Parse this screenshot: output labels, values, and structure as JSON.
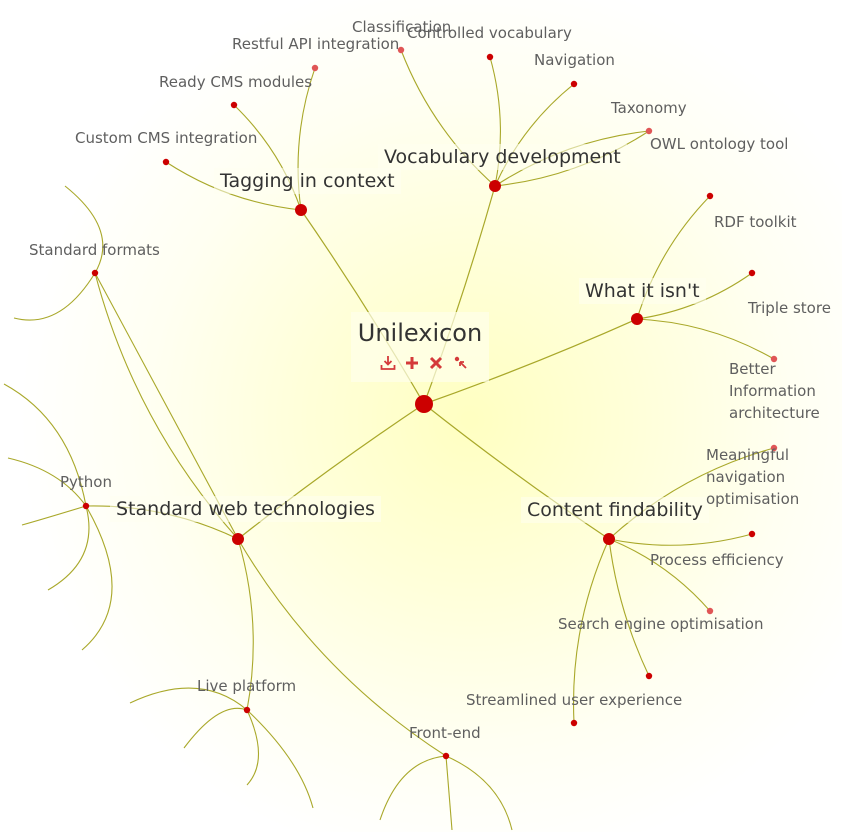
{
  "root": {
    "title": "Unilexicon",
    "tools": [
      {
        "name": "download-icon"
      },
      {
        "name": "add-icon"
      },
      {
        "name": "delete-icon"
      },
      {
        "name": "move-icon"
      }
    ]
  },
  "branches": [
    {
      "id": "tagging",
      "label": "Tagging in context",
      "children": [
        "Restful API integration",
        "Ready CMS modules",
        "Custom CMS integration"
      ]
    },
    {
      "id": "vocab",
      "label": "Vocabulary development",
      "children": [
        "Classification",
        "Controlled vocabulary",
        "Navigation",
        "Taxonomy",
        "OWL ontology tool"
      ]
    },
    {
      "id": "isnt",
      "label": "What it isn't",
      "children": [
        "RDF toolkit",
        "Triple store",
        "Better Information architecture"
      ]
    },
    {
      "id": "findability",
      "label": "Content findability",
      "children": [
        "Meaningful navigation optimisation",
        "Process efficiency",
        "Search engine optimisation",
        "Streamlined user experience"
      ]
    },
    {
      "id": "webtech",
      "label": "Standard web technologies",
      "children": [
        "Standard formats",
        "Python",
        "Live platform",
        "Front-end"
      ]
    }
  ],
  "colors": {
    "link": "#a9a82a",
    "node": "#cc0000",
    "node_light": "#e05656",
    "tool": "#d43a3a"
  }
}
